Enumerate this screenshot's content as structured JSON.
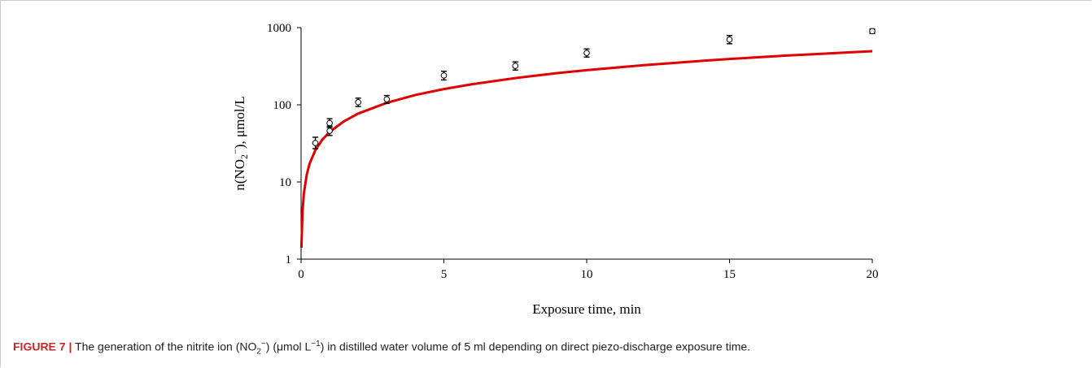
{
  "chart_data": {
    "type": "scatter",
    "xlabel": "Exposure time, min",
    "ylabel_parts": {
      "pre": "n(NO",
      "sub": "2",
      "sup": "−",
      "post": "), μmol/L"
    },
    "xlim": [
      0,
      20
    ],
    "ylim": [
      1,
      1000
    ],
    "yscale": "log",
    "x_ticks": [
      0,
      5,
      10,
      15,
      20
    ],
    "y_ticks": [
      1,
      10,
      100,
      1000
    ],
    "x_tick_labels": [
      "0",
      "5",
      "10",
      "15",
      "20"
    ],
    "y_tick_labels": [
      "1",
      "10",
      "100",
      "1000"
    ],
    "grid": false,
    "points": [
      {
        "x": 0.5,
        "y": 32,
        "err_low": 27,
        "err_high": 38
      },
      {
        "x": 1,
        "y": 46,
        "err_low": 40,
        "err_high": 53
      },
      {
        "x": 1,
        "y": 58,
        "err_low": 51,
        "err_high": 66
      },
      {
        "x": 2,
        "y": 108,
        "err_low": 95,
        "err_high": 122
      },
      {
        "x": 3,
        "y": 118,
        "err_low": 104,
        "err_high": 132
      },
      {
        "x": 5,
        "y": 240,
        "err_low": 210,
        "err_high": 272
      },
      {
        "x": 7.5,
        "y": 320,
        "err_low": 282,
        "err_high": 360
      },
      {
        "x": 10,
        "y": 470,
        "err_low": 415,
        "err_high": 530
      },
      {
        "x": 15,
        "y": 700,
        "err_low": 618,
        "err_high": 790
      },
      {
        "x": 20,
        "y": 900,
        "err_low": 840,
        "err_high": 960
      }
    ],
    "fit_curve": {
      "color": "#e00000",
      "x": [
        0.01,
        0.05,
        0.1,
        0.2,
        0.3,
        0.5,
        0.75,
        1,
        1.5,
        2,
        3,
        4,
        5,
        6,
        7.5,
        9,
        10,
        12,
        14,
        15,
        17,
        20
      ],
      "y": [
        1.4,
        4.2,
        7.2,
        12.5,
        17.3,
        25.9,
        35.5,
        44.5,
        61,
        77,
        106,
        134,
        160,
        185,
        222,
        258,
        281,
        326,
        370,
        392,
        434,
        495
      ]
    }
  },
  "caption": {
    "label": "FIGURE 7 |",
    "text_parts": [
      "The generation of the nitrite ion (NO",
      "2",
      "−",
      ") (μmol L",
      "−1",
      ") in distilled water volume of 5 ml depending on direct piezo-discharge exposure time."
    ]
  }
}
